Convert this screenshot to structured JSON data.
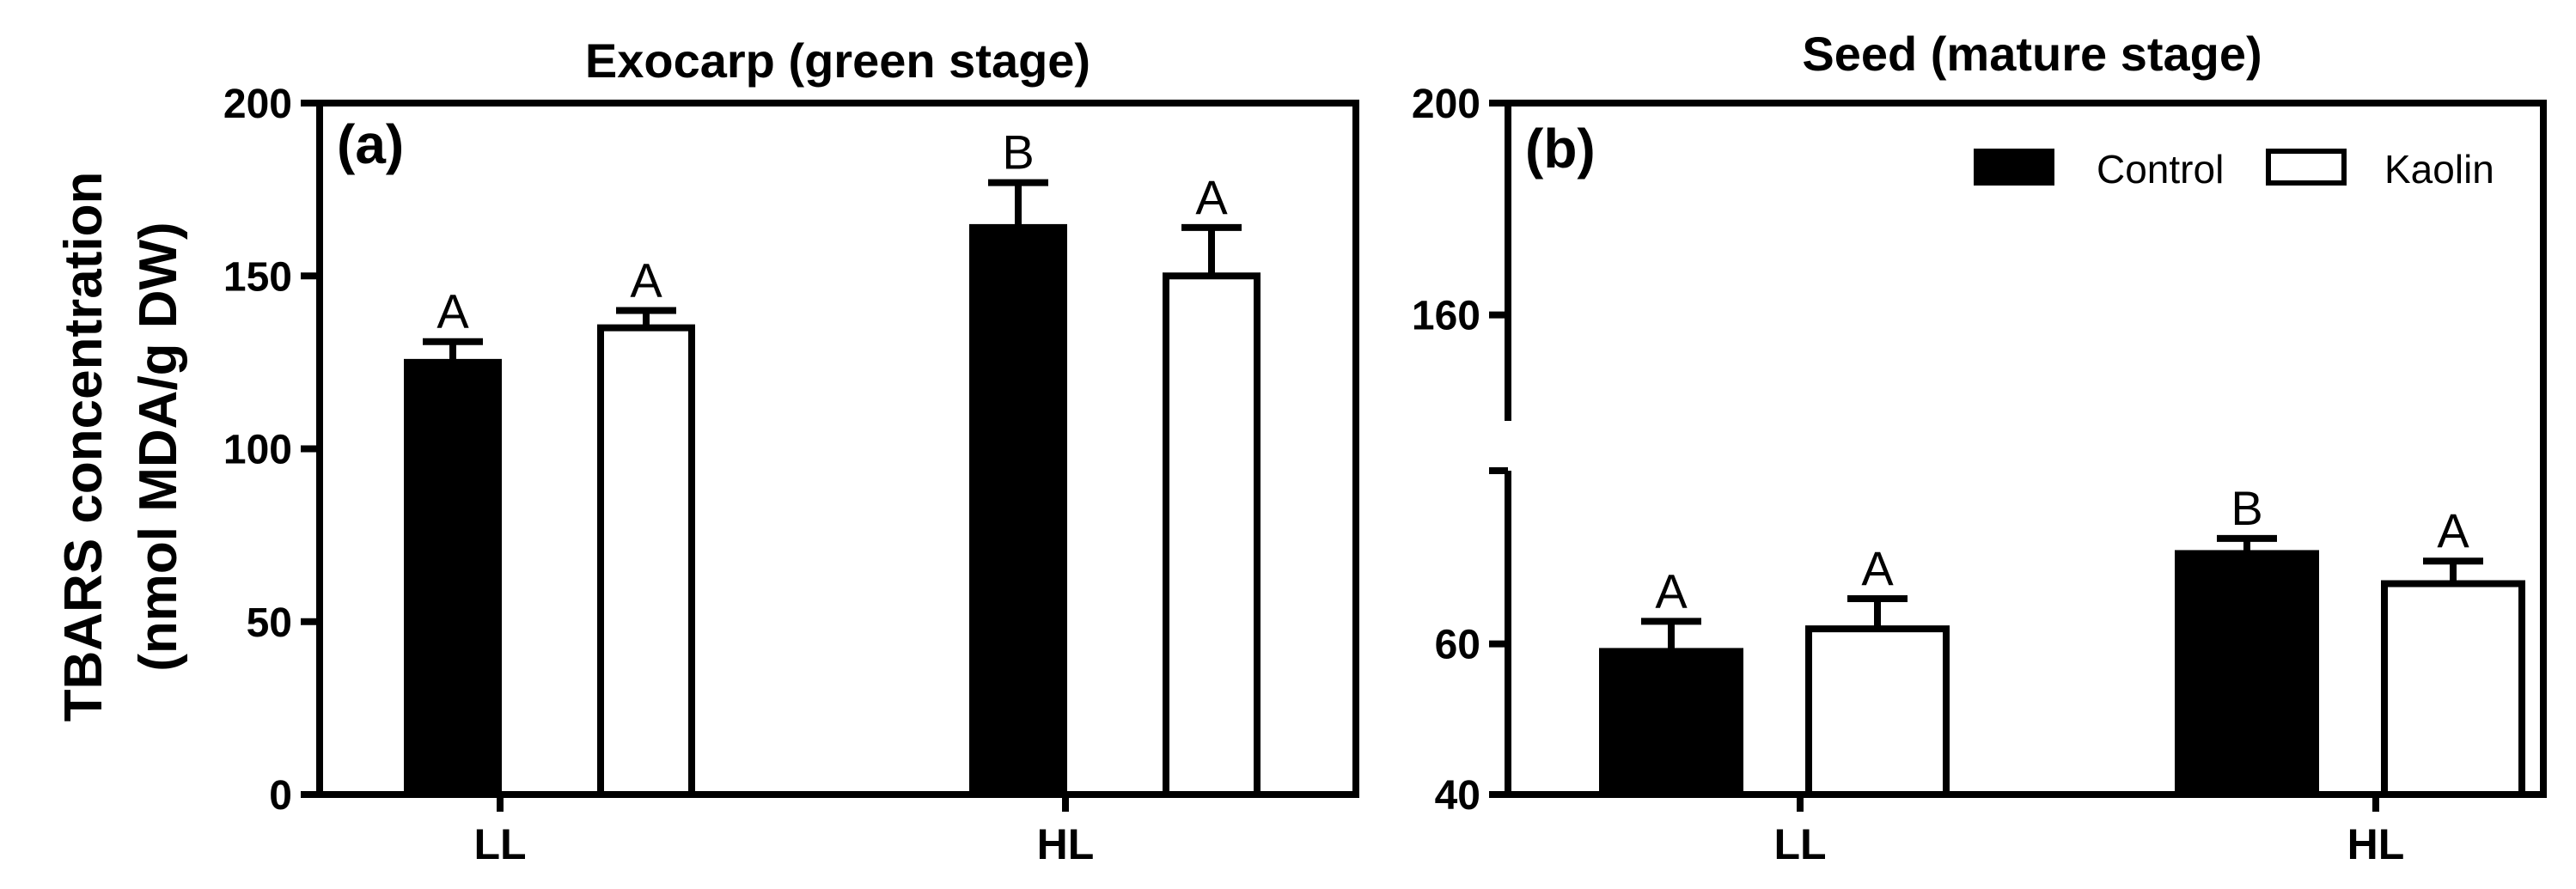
{
  "ylabel_line1": "TBARS concentration",
  "ylabel_line2": "(nmol MDA/g DW)",
  "legend": [
    {
      "label": "Control",
      "color": "#000000"
    },
    {
      "label": "Kaolin",
      "color": "#ffffff"
    }
  ],
  "chart_data": [
    {
      "type": "bar",
      "panel": "(a)",
      "title": "Exocarp (green stage)",
      "categories": [
        "LL",
        "HL"
      ],
      "ylim": [
        0,
        200
      ],
      "yticks": [
        0,
        50,
        100,
        150,
        200
      ],
      "series": [
        {
          "name": "Control",
          "color": "#000000",
          "values": [
            125,
            164
          ],
          "errors": [
            6,
            13
          ],
          "letters": [
            "A",
            "B"
          ]
        },
        {
          "name": "Kaolin",
          "color": "#ffffff",
          "values": [
            135,
            150
          ],
          "errors": [
            5,
            14
          ],
          "letters": [
            "A",
            "A"
          ]
        }
      ]
    },
    {
      "type": "bar",
      "panel": "(b)",
      "title": "Seed (mature stage)",
      "categories": [
        "LL",
        "HL"
      ],
      "ylim": [
        40,
        200
      ],
      "yticks": [
        40,
        60,
        160,
        200
      ],
      "axis_break": [
        83,
        140
      ],
      "legend_position": "top-right",
      "series": [
        {
          "name": "Control",
          "color": "#000000",
          "values": [
            59,
            72
          ],
          "errors": [
            4,
            2
          ],
          "letters": [
            "A",
            "B"
          ]
        },
        {
          "name": "Kaolin",
          "color": "#ffffff",
          "values": [
            62,
            68
          ],
          "errors": [
            4,
            3
          ],
          "letters": [
            "A",
            "A"
          ]
        }
      ]
    }
  ]
}
